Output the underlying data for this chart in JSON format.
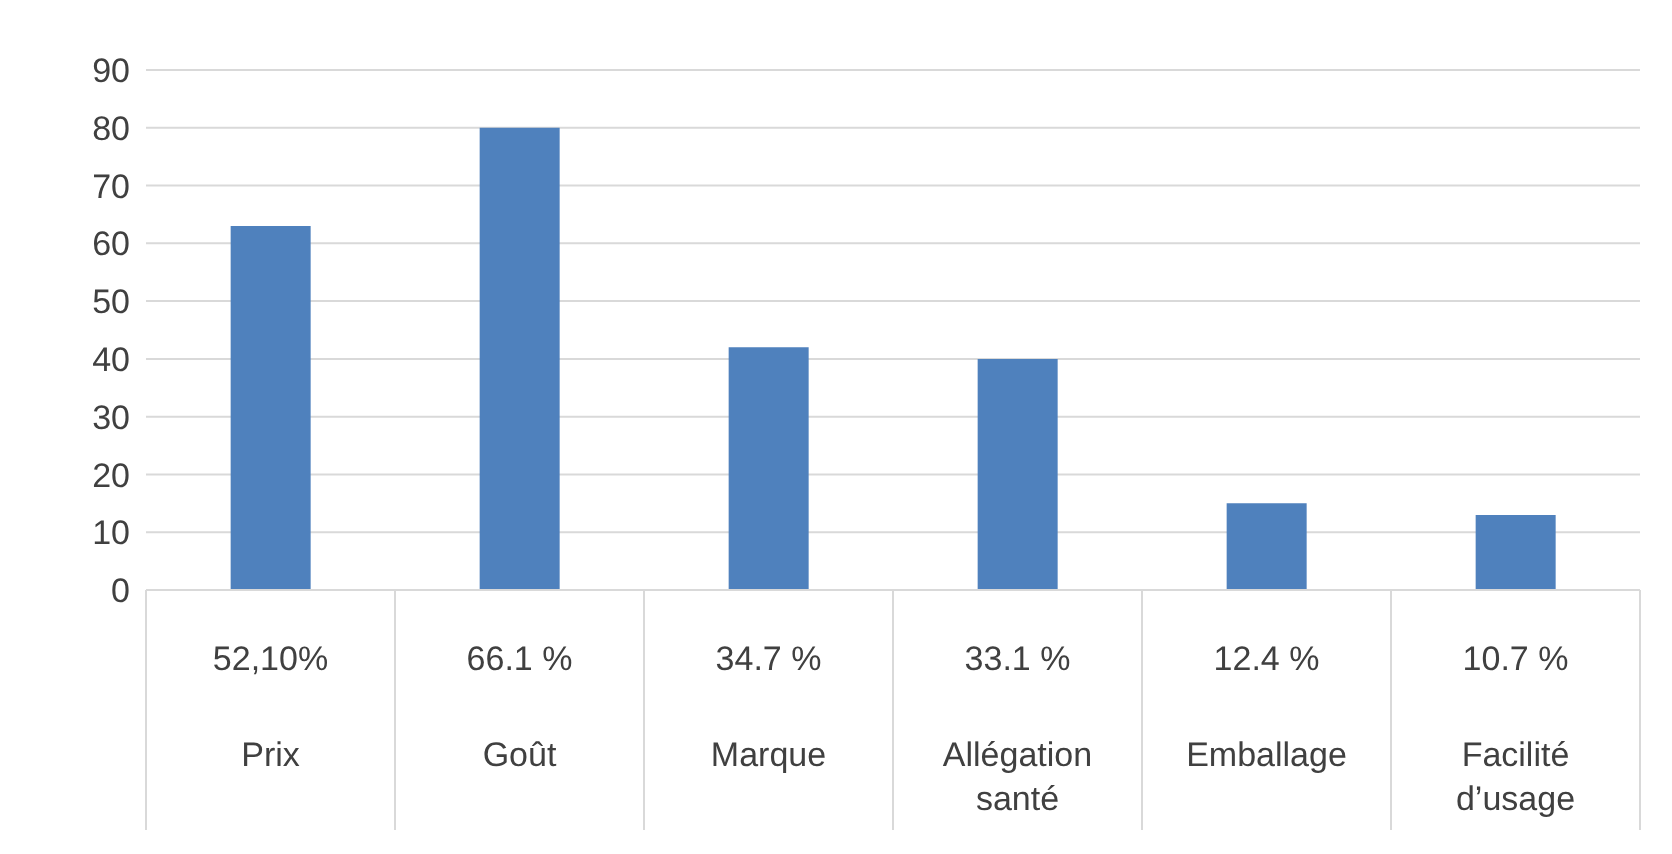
{
  "chart_data": {
    "type": "bar",
    "categories": [
      "Prix",
      "Goût",
      "Marque",
      "Allégation santé",
      "Emballage",
      "Facilité d’usage"
    ],
    "values": [
      63,
      80,
      42,
      40,
      15,
      13
    ],
    "annotations": [
      "52,10%",
      "66.1 %",
      "34.7 %",
      "33.1 %",
      "12.4 %",
      "10.7 %"
    ],
    "color": "#4f81bd",
    "ylim": [
      0,
      90
    ],
    "yticks": [
      0,
      10,
      20,
      30,
      40,
      50,
      60,
      70,
      80,
      90
    ],
    "grid": "y"
  }
}
